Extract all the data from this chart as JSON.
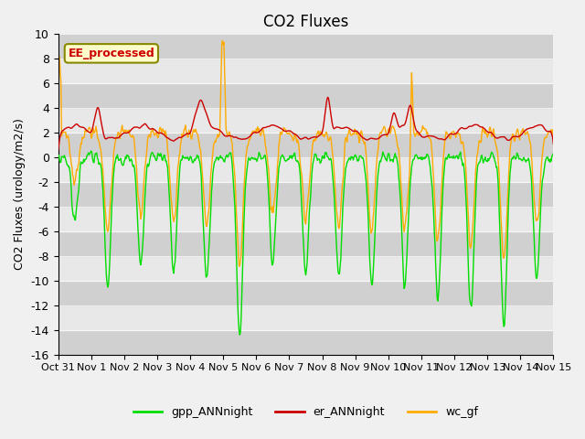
{
  "title": "CO2 Fluxes",
  "ylabel": "CO2 Fluxes (urology/m2/s)",
  "ylim": [
    -16,
    10
  ],
  "yticks": [
    -16,
    -14,
    -12,
    -10,
    -8,
    -6,
    -4,
    -2,
    0,
    2,
    4,
    6,
    8,
    10
  ],
  "xtick_labels": [
    "Oct 31",
    "Nov 1",
    "Nov 2",
    "Nov 3",
    "Nov 4",
    "Nov 5",
    "Nov 6",
    "Nov 7",
    "Nov 8",
    "Nov 9",
    "Nov 10",
    "Nov 11",
    "Nov 12",
    "Nov 13",
    "Nov 14",
    "Nov 15"
  ],
  "colors": {
    "gpp_ANNnight": "#00dd00",
    "er_ANNnight": "#cc0000",
    "wc_gf": "#ffaa00"
  },
  "line_width": 1.0,
  "annotation_text": "EE_processed",
  "annotation_box_color": "#ffffcc",
  "annotation_text_color": "#cc0000",
  "legend_entries": [
    "gpp_ANNnight",
    "er_ANNnight",
    "wc_gf"
  ],
  "title_fontsize": 12,
  "axis_fontsize": 9,
  "day_amplitudes": [
    0.5,
    1.0,
    0.85,
    0.9,
    0.95,
    1.4,
    0.85,
    0.9,
    0.95,
    1.0,
    1.0,
    1.1,
    1.2,
    1.3,
    0.95
  ]
}
